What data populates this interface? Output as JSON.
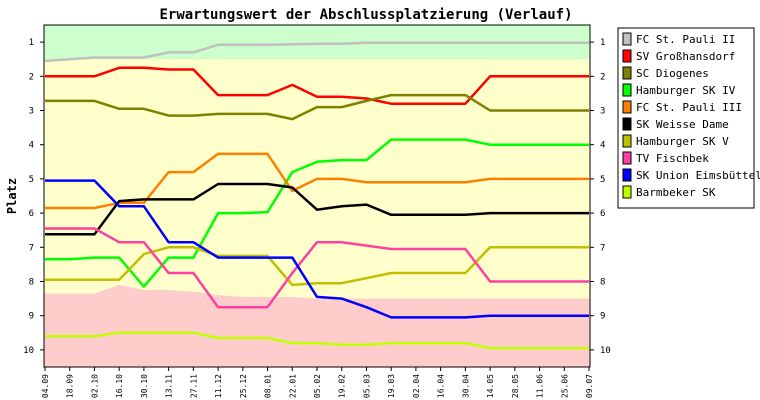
{
  "chart_data": {
    "type": "line",
    "title": "Erwartungswert der Abschlussplatzierung (Verlauf)",
    "ylabel": "Platz",
    "xlabel": "",
    "ylim": [
      10.5,
      0.5
    ],
    "y_inverted": true,
    "y_ticks": [
      1,
      2,
      3,
      4,
      5,
      6,
      7,
      8,
      9,
      10
    ],
    "x": [
      "04.09",
      "18.09",
      "02.10",
      "16.10",
      "30.10",
      "13.11",
      "27.11",
      "11.12",
      "25.12",
      "08.01",
      "22.01",
      "05.02",
      "19.02",
      "05.03",
      "19.03",
      "02.04",
      "16.04",
      "30.04",
      "14.05",
      "28.05",
      "11.06",
      "25.06",
      "09.07"
    ],
    "grid": false,
    "legend_position": "right",
    "background_bands": [
      {
        "name": "promotion",
        "color": "#ccffcc",
        "upper": [
          1.5,
          1.5,
          1.5,
          1.5,
          1.5,
          1.5,
          1.5,
          1.5,
          1.5,
          1.5,
          1.5,
          1.5,
          1.5,
          1.5,
          1.5,
          1.5,
          1.5,
          1.5,
          1.5,
          1.5,
          1.5,
          1.5,
          1.5
        ]
      },
      {
        "name": "middle",
        "color": "#ffffcc"
      },
      {
        "name": "relegation",
        "color": "#ffcccc",
        "lower": [
          8.35,
          8.35,
          8.35,
          8.1,
          8.25,
          8.25,
          8.3,
          8.4,
          8.45,
          8.45,
          8.45,
          8.5,
          8.5,
          8.5,
          8.5,
          8.5,
          8.5,
          8.5,
          8.5,
          8.5,
          8.5,
          8.5,
          8.5
        ]
      }
    ],
    "series": [
      {
        "name": "FC St. Pauli II",
        "color": "#c0c0c0",
        "values": [
          1.55,
          1.5,
          1.45,
          1.45,
          1.45,
          1.3,
          1.3,
          1.08,
          1.08,
          1.08,
          1.06,
          1.05,
          1.05,
          1.02,
          1.02,
          1.02,
          1.02,
          1.02,
          1.02,
          1.02,
          1.02,
          1.02,
          1.02
        ]
      },
      {
        "name": "SV Großhansdorf",
        "color": "#ff0000",
        "values": [
          2.0,
          2.0,
          2.0,
          1.75,
          1.75,
          1.8,
          1.8,
          2.55,
          2.55,
          2.55,
          2.25,
          2.6,
          2.6,
          2.65,
          2.8,
          2.8,
          2.8,
          2.8,
          2.0,
          2.0,
          2.0,
          2.0,
          2.0
        ]
      },
      {
        "name": "SC Diogenes",
        "color": "#808000",
        "values": [
          2.72,
          2.72,
          2.72,
          2.95,
          2.95,
          3.15,
          3.15,
          3.1,
          3.1,
          3.1,
          3.25,
          2.9,
          2.9,
          2.72,
          2.55,
          2.55,
          2.55,
          2.55,
          3.0,
          3.0,
          3.0,
          3.0,
          3.0
        ]
      },
      {
        "name": "Hamburger SK IV",
        "color": "#00ff00",
        "values": [
          7.35,
          7.35,
          7.3,
          7.3,
          8.15,
          7.3,
          7.3,
          6.0,
          6.0,
          5.97,
          4.8,
          4.5,
          4.45,
          4.45,
          3.85,
          3.85,
          3.85,
          3.85,
          4.0,
          4.0,
          4.0,
          4.0,
          4.0
        ]
      },
      {
        "name": "FC St. Pauli III",
        "color": "#ff8000",
        "values": [
          5.85,
          5.85,
          5.85,
          5.7,
          5.7,
          4.8,
          4.8,
          4.27,
          4.27,
          4.27,
          5.35,
          5.0,
          5.0,
          5.1,
          5.1,
          5.1,
          5.1,
          5.1,
          5.0,
          5.0,
          5.0,
          5.0,
          5.0
        ]
      },
      {
        "name": "SK Weisse Dame",
        "color": "#000000",
        "values": [
          6.62,
          6.62,
          6.62,
          5.65,
          5.6,
          5.6,
          5.6,
          5.15,
          5.15,
          5.15,
          5.25,
          5.9,
          5.8,
          5.75,
          6.05,
          6.05,
          6.05,
          6.05,
          6.0,
          6.0,
          6.0,
          6.0,
          6.0
        ]
      },
      {
        "name": "Hamburger SK V",
        "color": "#c0c000",
        "values": [
          7.95,
          7.95,
          7.95,
          7.95,
          7.2,
          7.0,
          7.0,
          7.25,
          7.25,
          7.25,
          8.1,
          8.05,
          8.05,
          7.9,
          7.75,
          7.75,
          7.75,
          7.75,
          7.0,
          7.0,
          7.0,
          7.0,
          7.0
        ]
      },
      {
        "name": "TV Fischbek",
        "color": "#ff40a0",
        "values": [
          6.45,
          6.45,
          6.45,
          6.85,
          6.85,
          7.75,
          7.75,
          8.75,
          8.75,
          8.75,
          7.75,
          6.85,
          6.85,
          6.95,
          7.05,
          7.05,
          7.05,
          7.05,
          8.0,
          8.0,
          8.0,
          8.0,
          8.0
        ]
      },
      {
        "name": "SK Union Eimsbüttel",
        "color": "#0000ff",
        "values": [
          5.05,
          5.05,
          5.05,
          5.8,
          5.8,
          6.85,
          6.85,
          7.3,
          7.3,
          7.3,
          7.3,
          8.45,
          8.5,
          8.75,
          9.05,
          9.05,
          9.05,
          9.05,
          9.0,
          9.0,
          9.0,
          9.0,
          9.0
        ]
      },
      {
        "name": "Barmbeker SK",
        "color": "#c0ff00",
        "values": [
          9.6,
          9.6,
          9.6,
          9.5,
          9.5,
          9.5,
          9.5,
          9.65,
          9.65,
          9.65,
          9.8,
          9.8,
          9.85,
          9.85,
          9.8,
          9.8,
          9.8,
          9.8,
          9.95,
          9.95,
          9.95,
          9.95,
          9.95
        ]
      }
    ]
  }
}
